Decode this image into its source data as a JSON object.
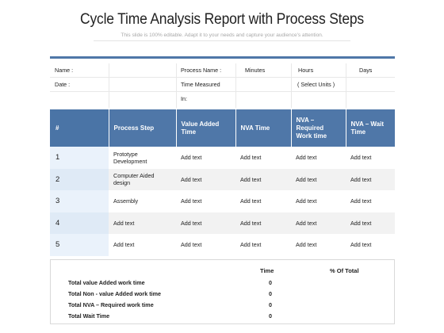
{
  "header": {
    "title": "Cycle Time Analysis Report with Process Steps",
    "subtitle": "This slide is 100% editable. Adapt it to your needs and capture your audience's attention."
  },
  "info": {
    "row1": [
      "Name :",
      "Process  Name :",
      "Minutes",
      "Hours",
      "Days"
    ],
    "row2": [
      "Date :",
      "Time Measured",
      "( Select Units )"
    ],
    "row3": [
      "In:"
    ]
  },
  "table": {
    "columns": [
      "#",
      "Process Step",
      "Value Added Time",
      "NVA Time",
      "NVA – Required Work time",
      "NVA – Wait Time"
    ],
    "rows": [
      [
        "1",
        "Prototype Development",
        "Add text",
        "Add text",
        "Add text",
        "Add text"
      ],
      [
        "2",
        "Computer Aided design",
        "Add text",
        "Add text",
        "Add text",
        "Add text"
      ],
      [
        "3",
        "Assembly",
        "Add text",
        "Add text",
        "Add text",
        "Add text"
      ],
      [
        "4",
        "Add text",
        "Add text",
        "Add text",
        "Add text",
        "Add text"
      ],
      [
        "5",
        "Add text",
        "Add text",
        "Add text",
        "Add text",
        "Add text"
      ]
    ]
  },
  "summary": {
    "col_time": "Time",
    "col_pct": "% Of Total",
    "rows": [
      {
        "label": "Total value Added work time",
        "time": "0"
      },
      {
        "label": "Total Non - value Added work time",
        "time": "0"
      },
      {
        "label": "Total NVA  – Required work time",
        "time": "0"
      },
      {
        "label": "Total Wait Time",
        "time": "0"
      }
    ]
  },
  "colors": {
    "accent": "#4f77a8",
    "row_alt": "#f2f2f2",
    "num_cell": "#e9f1fa"
  }
}
